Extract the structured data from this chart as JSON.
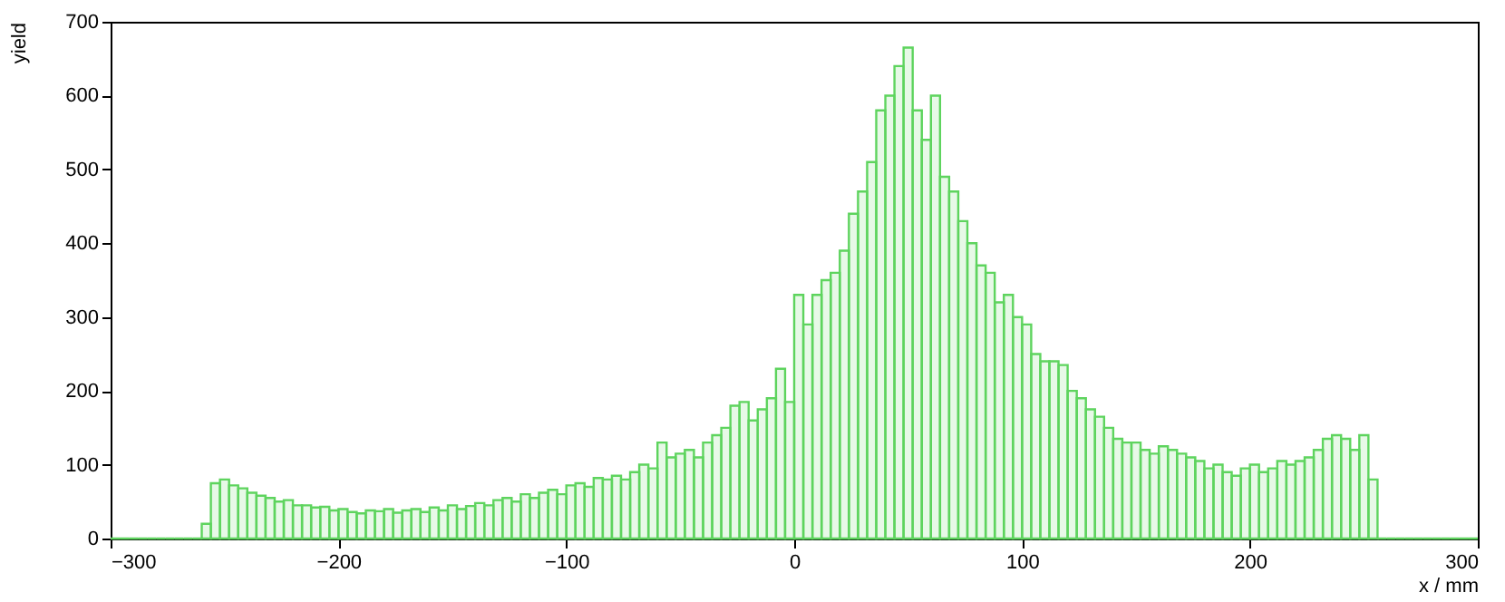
{
  "chart_data": {
    "type": "histogram",
    "xlabel": "x / mm",
    "ylabel": "yield",
    "color": "#5ed45e",
    "bins": [
      -300,
      -296,
      -292,
      -288,
      -284,
      -280,
      -276,
      -272,
      -268,
      -264,
      -260,
      -256,
      -252,
      -248,
      -244,
      -240,
      -236,
      -232,
      -228,
      -224,
      -220,
      -216,
      -212,
      -208,
      -204,
      -200,
      -196,
      -192,
      -188,
      -184,
      -180,
      -176,
      -172,
      -168,
      -164,
      -160,
      -156,
      -152,
      -148,
      -144,
      -140,
      -136,
      -132,
      -128,
      -124,
      -120,
      -116,
      -112,
      -108,
      -104,
      -100,
      -96,
      -92,
      -88,
      -84,
      -80,
      -76,
      -72,
      -68,
      -64,
      -60,
      -56,
      -52,
      -48,
      -44,
      -40,
      -36,
      -32,
      -28,
      -24,
      -20,
      -16,
      -12,
      -8,
      -4,
      0,
      4,
      8,
      12,
      16,
      20,
      24,
      28,
      32,
      36,
      40,
      44,
      48,
      52,
      56,
      60,
      64,
      68,
      72,
      76,
      80,
      84,
      88,
      92,
      96,
      100,
      104,
      108,
      112,
      116,
      120,
      124,
      128,
      132,
      136,
      140,
      144,
      148,
      152,
      156,
      160,
      164,
      168,
      172,
      176,
      180,
      184,
      188,
      192,
      196,
      200,
      204,
      208,
      212,
      216,
      220,
      224,
      228,
      232,
      236,
      240,
      244,
      248,
      252,
      256,
      260,
      264,
      268,
      272,
      276,
      280,
      284,
      288,
      292,
      296,
      300
    ],
    "values": [
      0,
      0,
      0,
      0,
      0,
      0,
      0,
      0,
      0,
      0,
      20,
      75,
      80,
      72,
      68,
      62,
      58,
      55,
      50,
      52,
      45,
      45,
      42,
      43,
      38,
      40,
      36,
      34,
      38,
      37,
      40,
      35,
      38,
      40,
      36,
      42,
      38,
      45,
      40,
      44,
      48,
      45,
      52,
      55,
      50,
      60,
      55,
      62,
      66,
      60,
      72,
      75,
      70,
      82,
      80,
      85,
      80,
      90,
      100,
      95,
      130,
      110,
      115,
      120,
      110,
      130,
      140,
      150,
      180,
      185,
      160,
      175,
      190,
      230,
      185,
      330,
      290,
      330,
      350,
      360,
      390,
      440,
      470,
      510,
      580,
      600,
      640,
      665,
      580,
      540,
      600,
      490,
      470,
      430,
      400,
      370,
      360,
      320,
      330,
      300,
      290,
      250,
      240,
      240,
      235,
      200,
      190,
      175,
      165,
      150,
      135,
      130,
      130,
      120,
      115,
      125,
      120,
      115,
      110,
      105,
      95,
      100,
      90,
      85,
      95,
      100,
      90,
      95,
      105,
      100,
      105,
      110,
      120,
      135,
      140,
      135,
      120,
      140,
      80,
      0,
      0,
      0,
      0,
      0,
      0,
      0,
      0,
      0,
      0,
      0
    ],
    "xlim": [
      -300,
      300
    ],
    "xticks": [
      -300,
      -200,
      -100,
      0,
      100,
      200,
      300
    ],
    "ylim": [
      0,
      700
    ],
    "yticks": [
      0,
      100,
      200,
      300,
      400,
      500,
      600,
      700
    ]
  }
}
